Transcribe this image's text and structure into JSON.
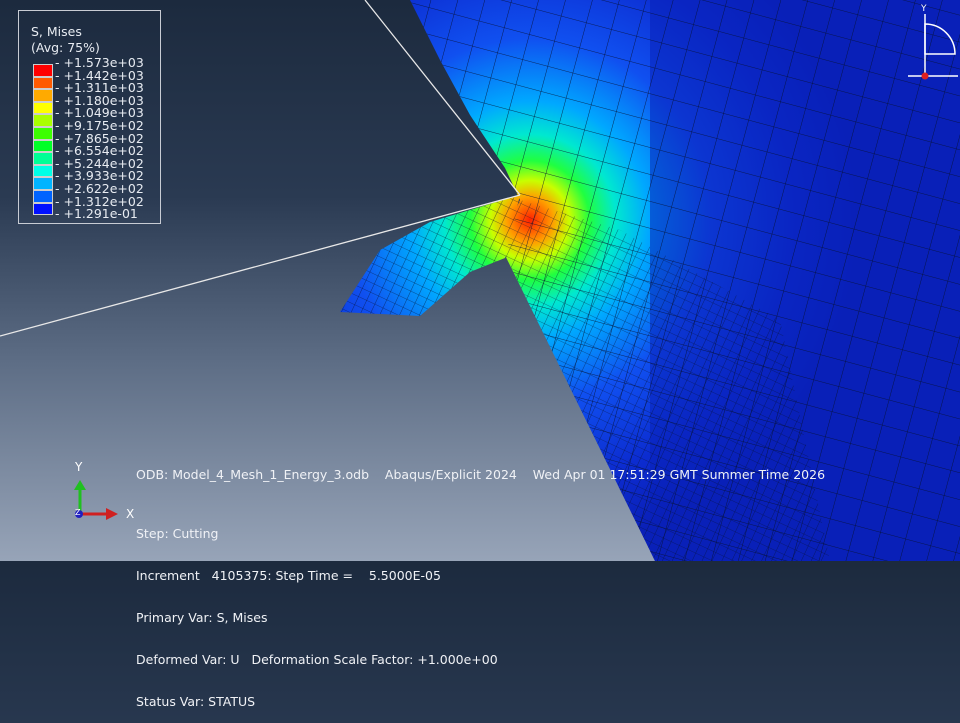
{
  "legend": {
    "title": "S, Mises",
    "subtitle": "(Avg: 75%)",
    "values": [
      "+1.573e+03",
      "+1.442e+03",
      "+1.311e+03",
      "+1.180e+03",
      "+1.049e+03",
      "+9.175e+02",
      "+7.865e+02",
      "+6.554e+02",
      "+5.244e+02",
      "+3.933e+02",
      "+2.622e+02",
      "+1.312e+02",
      "+1.291e-01"
    ],
    "colors": [
      "#ff0000",
      "#ff5a00",
      "#ffaa00",
      "#ffff00",
      "#aaff00",
      "#3cff00",
      "#00ff28",
      "#00ff96",
      "#00ffe6",
      "#00b4ff",
      "#0064ff",
      "#0010ff"
    ]
  },
  "info": {
    "odb_line": "ODB: Model_4_Mesh_1_Energy_3.odb    Abaqus/Explicit 2024    Wed Apr 01 17:51:29 GMT Summer Time 2026",
    "step": "Step: Cutting",
    "increment": "Increment   4105375: Step Time =    5.5000E-05",
    "primary": "Primary Var: S, Mises",
    "deformed": "Deformed Var: U   Deformation Scale Factor: +1.000e+00",
    "status": "Status Var: STATUS"
  },
  "triad": {
    "x": "X",
    "y": "Y",
    "z": "Z"
  },
  "view_triad": {
    "y": "Y"
  }
}
